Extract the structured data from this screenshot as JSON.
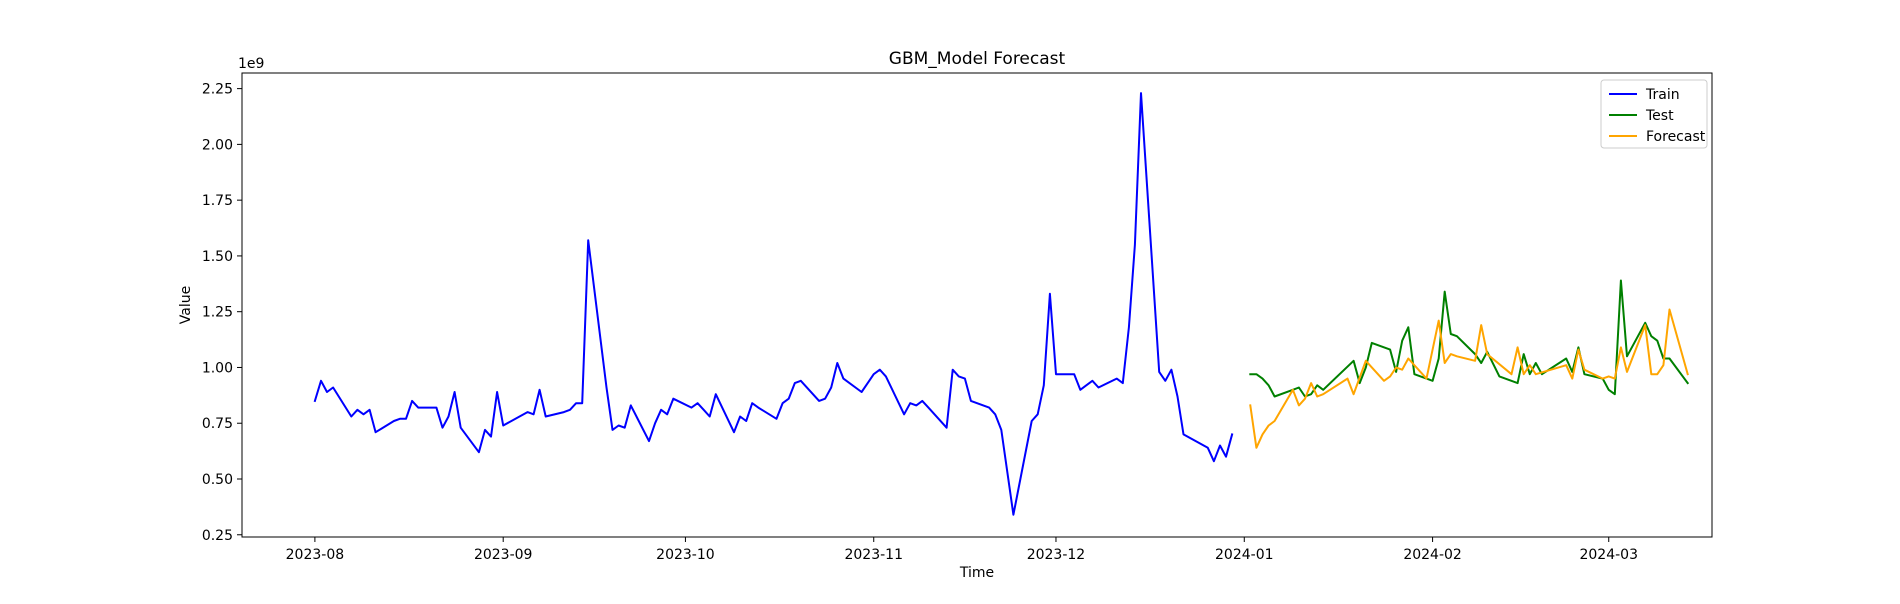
{
  "chart_data": {
    "type": "line",
    "title": "GBM_Model Forecast",
    "xlabel": "Time",
    "ylabel": "Value",
    "y_offset_label": "1e9",
    "xlim": [
      "2023-07-20",
      "2024-03-18"
    ],
    "ylim": [
      0.24,
      2.32
    ],
    "x_ticks": [
      {
        "date": "2023-08-01",
        "label": "2023-08"
      },
      {
        "date": "2023-09-01",
        "label": "2023-09"
      },
      {
        "date": "2023-10-01",
        "label": "2023-10"
      },
      {
        "date": "2023-11-01",
        "label": "2023-11"
      },
      {
        "date": "2023-12-01",
        "label": "2023-12"
      },
      {
        "date": "2024-01-01",
        "label": "2024-01"
      },
      {
        "date": "2024-02-01",
        "label": "2024-02"
      },
      {
        "date": "2024-03-01",
        "label": "2024-03"
      }
    ],
    "y_ticks": [
      0.25,
      0.5,
      0.75,
      1.0,
      1.25,
      1.5,
      1.75,
      2.0,
      2.25
    ],
    "y_tick_labels": [
      "0.25",
      "0.50",
      "0.75",
      "1.00",
      "1.25",
      "1.50",
      "1.75",
      "2.00",
      "2.25"
    ],
    "grid": false,
    "legend_position": "top-right",
    "series": [
      {
        "name": "Train",
        "color": "#0000ff",
        "points": [
          [
            "2023-08-01",
            0.85
          ],
          [
            "2023-08-02",
            0.94
          ],
          [
            "2023-08-03",
            0.89
          ],
          [
            "2023-08-04",
            0.91
          ],
          [
            "2023-08-07",
            0.78
          ],
          [
            "2023-08-08",
            0.81
          ],
          [
            "2023-08-09",
            0.79
          ],
          [
            "2023-08-10",
            0.81
          ],
          [
            "2023-08-11",
            0.71
          ],
          [
            "2023-08-14",
            0.76
          ],
          [
            "2023-08-15",
            0.77
          ],
          [
            "2023-08-16",
            0.77
          ],
          [
            "2023-08-17",
            0.85
          ],
          [
            "2023-08-18",
            0.82
          ],
          [
            "2023-08-21",
            0.82
          ],
          [
            "2023-08-22",
            0.73
          ],
          [
            "2023-08-23",
            0.78
          ],
          [
            "2023-08-24",
            0.89
          ],
          [
            "2023-08-25",
            0.73
          ],
          [
            "2023-08-28",
            0.62
          ],
          [
            "2023-08-29",
            0.72
          ],
          [
            "2023-08-30",
            0.69
          ],
          [
            "2023-08-31",
            0.89
          ],
          [
            "2023-09-01",
            0.74
          ],
          [
            "2023-09-05",
            0.8
          ],
          [
            "2023-09-06",
            0.79
          ],
          [
            "2023-09-07",
            0.9
          ],
          [
            "2023-09-08",
            0.78
          ],
          [
            "2023-09-11",
            0.8
          ],
          [
            "2023-09-12",
            0.81
          ],
          [
            "2023-09-13",
            0.84
          ],
          [
            "2023-09-14",
            0.84
          ],
          [
            "2023-09-15",
            1.57
          ],
          [
            "2023-09-18",
            0.91
          ],
          [
            "2023-09-19",
            0.72
          ],
          [
            "2023-09-20",
            0.74
          ],
          [
            "2023-09-21",
            0.73
          ],
          [
            "2023-09-22",
            0.83
          ],
          [
            "2023-09-25",
            0.67
          ],
          [
            "2023-09-26",
            0.75
          ],
          [
            "2023-09-27",
            0.81
          ],
          [
            "2023-09-28",
            0.79
          ],
          [
            "2023-09-29",
            0.86
          ],
          [
            "2023-10-02",
            0.82
          ],
          [
            "2023-10-03",
            0.84
          ],
          [
            "2023-10-04",
            0.81
          ],
          [
            "2023-10-05",
            0.78
          ],
          [
            "2023-10-06",
            0.88
          ],
          [
            "2023-10-09",
            0.71
          ],
          [
            "2023-10-10",
            0.78
          ],
          [
            "2023-10-11",
            0.76
          ],
          [
            "2023-10-12",
            0.84
          ],
          [
            "2023-10-13",
            0.82
          ],
          [
            "2023-10-16",
            0.77
          ],
          [
            "2023-10-17",
            0.84
          ],
          [
            "2023-10-18",
            0.86
          ],
          [
            "2023-10-19",
            0.93
          ],
          [
            "2023-10-20",
            0.94
          ],
          [
            "2023-10-23",
            0.85
          ],
          [
            "2023-10-24",
            0.86
          ],
          [
            "2023-10-25",
            0.91
          ],
          [
            "2023-10-26",
            1.02
          ],
          [
            "2023-10-27",
            0.95
          ],
          [
            "2023-10-30",
            0.89
          ],
          [
            "2023-10-31",
            0.93
          ],
          [
            "2023-11-01",
            0.97
          ],
          [
            "2023-11-02",
            0.99
          ],
          [
            "2023-11-03",
            0.96
          ],
          [
            "2023-11-06",
            0.79
          ],
          [
            "2023-11-07",
            0.84
          ],
          [
            "2023-11-08",
            0.83
          ],
          [
            "2023-11-09",
            0.85
          ],
          [
            "2023-11-10",
            0.82
          ],
          [
            "2023-11-13",
            0.73
          ],
          [
            "2023-11-14",
            0.99
          ],
          [
            "2023-11-15",
            0.96
          ],
          [
            "2023-11-16",
            0.95
          ],
          [
            "2023-11-17",
            0.85
          ],
          [
            "2023-11-20",
            0.82
          ],
          [
            "2023-11-21",
            0.79
          ],
          [
            "2023-11-22",
            0.72
          ],
          [
            "2023-11-24",
            0.34
          ],
          [
            "2023-11-27",
            0.76
          ],
          [
            "2023-11-28",
            0.79
          ],
          [
            "2023-11-29",
            0.92
          ],
          [
            "2023-11-30",
            1.33
          ],
          [
            "2023-12-01",
            0.97
          ],
          [
            "2023-12-04",
            0.97
          ],
          [
            "2023-12-05",
            0.9
          ],
          [
            "2023-12-06",
            0.92
          ],
          [
            "2023-12-07",
            0.94
          ],
          [
            "2023-12-08",
            0.91
          ],
          [
            "2023-12-11",
            0.95
          ],
          [
            "2023-12-12",
            0.93
          ],
          [
            "2023-12-13",
            1.18
          ],
          [
            "2023-12-14",
            1.55
          ],
          [
            "2023-12-15",
            2.23
          ],
          [
            "2023-12-18",
            0.98
          ],
          [
            "2023-12-19",
            0.94
          ],
          [
            "2023-12-20",
            0.99
          ],
          [
            "2023-12-21",
            0.87
          ],
          [
            "2023-12-22",
            0.7
          ],
          [
            "2023-12-26",
            0.64
          ],
          [
            "2023-12-27",
            0.58
          ],
          [
            "2023-12-28",
            0.65
          ],
          [
            "2023-12-29",
            0.6
          ],
          [
            "2023-12-30",
            0.7
          ]
        ]
      },
      {
        "name": "Test",
        "color": "#008000",
        "points": [
          [
            "2024-01-02",
            0.97
          ],
          [
            "2024-01-03",
            0.97
          ],
          [
            "2024-01-04",
            0.95
          ],
          [
            "2024-01-05",
            0.92
          ],
          [
            "2024-01-06",
            0.87
          ],
          [
            "2024-01-09",
            0.9
          ],
          [
            "2024-01-10",
            0.91
          ],
          [
            "2024-01-11",
            0.87
          ],
          [
            "2024-01-12",
            0.88
          ],
          [
            "2024-01-13",
            0.92
          ],
          [
            "2024-01-14",
            0.9
          ],
          [
            "2024-01-19",
            1.03
          ],
          [
            "2024-01-20",
            0.93
          ],
          [
            "2024-01-21",
            1.0
          ],
          [
            "2024-01-22",
            1.11
          ],
          [
            "2024-01-25",
            1.08
          ],
          [
            "2024-01-26",
            0.98
          ],
          [
            "2024-01-27",
            1.12
          ],
          [
            "2024-01-28",
            1.18
          ],
          [
            "2024-01-29",
            0.97
          ],
          [
            "2024-02-01",
            0.94
          ],
          [
            "2024-02-02",
            1.04
          ],
          [
            "2024-02-03",
            1.34
          ],
          [
            "2024-02-04",
            1.15
          ],
          [
            "2024-02-05",
            1.14
          ],
          [
            "2024-02-08",
            1.06
          ],
          [
            "2024-02-09",
            1.02
          ],
          [
            "2024-02-10",
            1.07
          ],
          [
            "2024-02-12",
            0.96
          ],
          [
            "2024-02-15",
            0.93
          ],
          [
            "2024-02-16",
            1.06
          ],
          [
            "2024-02-17",
            0.97
          ],
          [
            "2024-02-18",
            1.02
          ],
          [
            "2024-02-19",
            0.97
          ],
          [
            "2024-02-23",
            1.04
          ],
          [
            "2024-02-24",
            0.98
          ],
          [
            "2024-02-25",
            1.09
          ],
          [
            "2024-02-26",
            0.97
          ],
          [
            "2024-02-29",
            0.95
          ],
          [
            "2024-03-01",
            0.9
          ],
          [
            "2024-03-02",
            0.88
          ],
          [
            "2024-03-03",
            1.39
          ],
          [
            "2024-03-04",
            1.05
          ],
          [
            "2024-03-07",
            1.2
          ],
          [
            "2024-03-08",
            1.14
          ],
          [
            "2024-03-09",
            1.12
          ],
          [
            "2024-03-10",
            1.04
          ],
          [
            "2024-03-11",
            1.04
          ],
          [
            "2024-03-14",
            0.93
          ]
        ]
      },
      {
        "name": "Forecast",
        "color": "#ffa500",
        "points": [
          [
            "2024-01-02",
            0.83
          ],
          [
            "2024-01-03",
            0.64
          ],
          [
            "2024-01-04",
            0.7
          ],
          [
            "2024-01-05",
            0.74
          ],
          [
            "2024-01-06",
            0.76
          ],
          [
            "2024-01-09",
            0.9
          ],
          [
            "2024-01-10",
            0.83
          ],
          [
            "2024-01-11",
            0.86
          ],
          [
            "2024-01-12",
            0.93
          ],
          [
            "2024-01-13",
            0.87
          ],
          [
            "2024-01-14",
            0.88
          ],
          [
            "2024-01-18",
            0.95
          ],
          [
            "2024-01-19",
            0.88
          ],
          [
            "2024-01-21",
            1.03
          ],
          [
            "2024-01-24",
            0.94
          ],
          [
            "2024-01-25",
            0.96
          ],
          [
            "2024-01-26",
            1.0
          ],
          [
            "2024-01-27",
            0.99
          ],
          [
            "2024-01-28",
            1.04
          ],
          [
            "2024-01-31",
            0.95
          ],
          [
            "2024-02-02",
            1.21
          ],
          [
            "2024-02-03",
            1.02
          ],
          [
            "2024-02-04",
            1.06
          ],
          [
            "2024-02-05",
            1.05
          ],
          [
            "2024-02-08",
            1.03
          ],
          [
            "2024-02-09",
            1.19
          ],
          [
            "2024-02-10",
            1.06
          ],
          [
            "2024-02-14",
            0.97
          ],
          [
            "2024-02-15",
            1.09
          ],
          [
            "2024-02-16",
            0.97
          ],
          [
            "2024-02-17",
            1.01
          ],
          [
            "2024-02-18",
            0.97
          ],
          [
            "2024-02-23",
            1.01
          ],
          [
            "2024-02-24",
            0.95
          ],
          [
            "2024-02-25",
            1.08
          ],
          [
            "2024-02-26",
            0.99
          ],
          [
            "2024-02-29",
            0.95
          ],
          [
            "2024-03-01",
            0.96
          ],
          [
            "2024-03-02",
            0.95
          ],
          [
            "2024-03-03",
            1.09
          ],
          [
            "2024-03-04",
            0.98
          ],
          [
            "2024-03-07",
            1.19
          ],
          [
            "2024-03-08",
            0.97
          ],
          [
            "2024-03-09",
            0.97
          ],
          [
            "2024-03-10",
            1.01
          ],
          [
            "2024-03-11",
            1.26
          ],
          [
            "2024-03-14",
            0.97
          ]
        ]
      }
    ]
  }
}
